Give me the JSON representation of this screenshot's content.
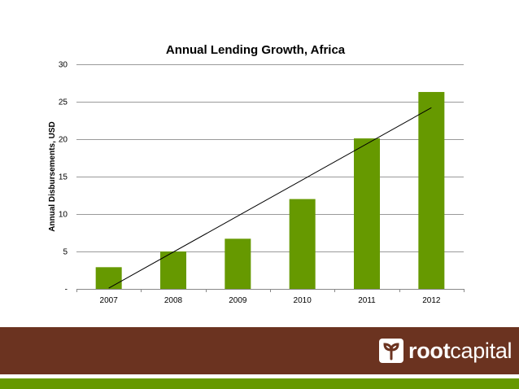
{
  "chart_data": {
    "type": "bar",
    "title": "Annual Lending Growth, Africa",
    "ylabel": "Annual Disbursements, USD",
    "xlabel": "",
    "categories": [
      "2007",
      "2008",
      "2009",
      "2010",
      "2011",
      "2012"
    ],
    "values": [
      2.9,
      5.0,
      6.7,
      12.0,
      20.1,
      26.3
    ],
    "ylim": [
      0,
      30
    ],
    "yticks": [
      0,
      5,
      10,
      15,
      20,
      25,
      30
    ],
    "ytick_labels": [
      "-",
      "5",
      "10",
      "15",
      "20",
      "25",
      "30"
    ],
    "grid": true,
    "trendline": {
      "type": "linear",
      "start": 0.1,
      "end": 24.2
    },
    "colors": {
      "bar": "#669900",
      "grid": "#9a9a9a",
      "axis": "#888888",
      "trend": "#000000"
    }
  },
  "footer": {
    "brand_bold": "root",
    "brand_regular": "capital",
    "logo_icon": "sprout-icon",
    "colors": {
      "band": "#6b3320",
      "stripe": "#669900",
      "text": "#ffffff"
    }
  }
}
